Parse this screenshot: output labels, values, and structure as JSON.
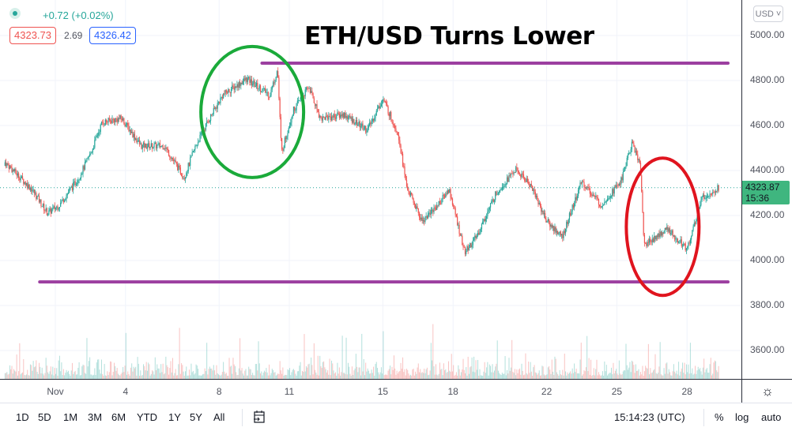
{
  "legend": {
    "change": "+0.72 (+0.02%)",
    "bid": "4323.73",
    "spread": "2.69",
    "ask": "4326.42",
    "bid_color": "#ef5350",
    "ask_color": "#2962ff"
  },
  "currency_button": "USD ˅",
  "last_price": {
    "value": "4323.87",
    "countdown": "15:36",
    "color": "#3fb67f"
  },
  "toolbar": {
    "ranges": [
      "1D",
      "5D",
      "1M",
      "3M",
      "6M",
      "YTD",
      "1Y",
      "5Y",
      "All"
    ],
    "time": "15:14:23 (UTC)",
    "percent": "%",
    "log": "log",
    "auto": "auto"
  },
  "icons": {
    "settings": "gear-icon",
    "goto_date": "calendar-icon",
    "legend_status": "dot-icon"
  },
  "chart_data": {
    "type": "candlestick",
    "title": "ETH/USD Turns Lower",
    "x_tick_labels": [
      "Nov",
      "4",
      "8",
      "11",
      "15",
      "18",
      "22",
      "25",
      "28"
    ],
    "x_ticks_dates": [
      "Nov 1",
      "Nov 4",
      "Nov 8",
      "Nov 11",
      "Nov 15",
      "Nov 18",
      "Nov 22",
      "Nov 25",
      "Nov 28"
    ],
    "y_tick_labels": [
      "5000.00",
      "4800.00",
      "4600.00",
      "4400.00",
      "4200.00",
      "4000.00",
      "3800.00",
      "3600.00"
    ],
    "y_ticks": [
      5000,
      4800,
      4600,
      4400,
      4200,
      4000,
      3800,
      3600
    ],
    "ylim": [
      3480,
      5160
    ],
    "xlim": [
      "Oct 29 19:00",
      "Nov 29 18:00"
    ],
    "grid": true,
    "up_color": "#26a69a",
    "down_color": "#ef5350",
    "price_path": [
      [
        "Oct 30 00:00",
        4421
      ],
      [
        "Oct 31 00:00",
        4316
      ],
      [
        "Oct 31 16:00",
        4210
      ],
      [
        "Nov 1 04:00",
        4246
      ],
      [
        "Nov 2 00:00",
        4368
      ],
      [
        "Nov 2 12:00",
        4474
      ],
      [
        "Nov 3 00:00",
        4614
      ],
      [
        "Nov 3 20:00",
        4632
      ],
      [
        "Nov 4 16:00",
        4509
      ],
      [
        "Nov 5 16:00",
        4509
      ],
      [
        "Nov 6 12:00",
        4368
      ],
      [
        "Nov 7 00:00",
        4509
      ],
      [
        "Nov 7 12:00",
        4614
      ],
      [
        "Nov 8 04:00",
        4737
      ],
      [
        "Nov 9 04:00",
        4807
      ],
      [
        "Nov 10 04:00",
        4737
      ],
      [
        "Nov 10 12:00",
        4850
      ],
      [
        "Nov 10 16:00",
        4480
      ],
      [
        "Nov 11 04:00",
        4667
      ],
      [
        "Nov 11 20:00",
        4772
      ],
      [
        "Nov 12 08:00",
        4632
      ],
      [
        "Nov 13 08:00",
        4649
      ],
      [
        "Nov 14 08:00",
        4579
      ],
      [
        "Nov 15 00:00",
        4719
      ],
      [
        "Nov 15 16:00",
        4561
      ],
      [
        "Nov 16 00:00",
        4333
      ],
      [
        "Nov 16 16:00",
        4175
      ],
      [
        "Nov 17 08:00",
        4246
      ],
      [
        "Nov 17 20:00",
        4316
      ],
      [
        "Nov 18 12:00",
        4035
      ],
      [
        "Nov 19 00:00",
        4105
      ],
      [
        "Nov 19 20:00",
        4298
      ],
      [
        "Nov 20 16:00",
        4404
      ],
      [
        "Nov 21 08:00",
        4333
      ],
      [
        "Nov 22 00:00",
        4175
      ],
      [
        "Nov 22 16:00",
        4105
      ],
      [
        "Nov 23 12:00",
        4351
      ],
      [
        "Nov 24 08:00",
        4246
      ],
      [
        "Nov 25 04:00",
        4351
      ],
      [
        "Nov 25 16:00",
        4526
      ],
      [
        "Nov 26 00:00",
        4421
      ],
      [
        "Nov 26 04:00",
        4070
      ],
      [
        "Nov 27 04:00",
        4140
      ],
      [
        "Nov 28 00:00",
        4053
      ],
      [
        "Nov 28 16:00",
        4281
      ],
      [
        "Nov 29 08:00",
        4324
      ]
    ],
    "current_price": 4323.87,
    "annotations": {
      "resistance_line": {
        "price": 4877,
        "from": "Nov 9 20:00",
        "to": "Nov 29 18:00",
        "color": "#9c3fa0"
      },
      "support_line": {
        "price": 3905,
        "from": "Oct 31 08:00",
        "to": "Nov 29 18:00",
        "color": "#9c3fa0"
      },
      "green_circle": {
        "center": [
          "Nov 9 10:00",
          4660
        ],
        "color": "#1aaa3a"
      },
      "red_circle": {
        "center": [
          "Nov 26 23:00",
          4150
        ],
        "color": "#e0141e"
      }
    }
  }
}
